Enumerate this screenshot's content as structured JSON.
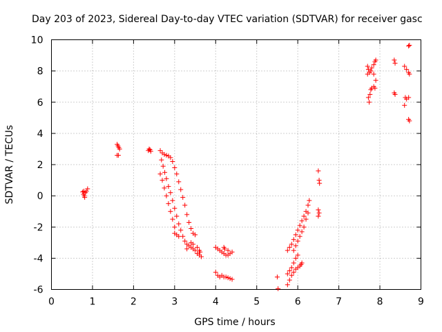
{
  "chart_data": {
    "type": "scatter",
    "title": "Day 203 of 2023, Sidereal Day-to-day VTEC variation (SDTVAR) for receiver gasc",
    "xlabel": "GPS time / hours",
    "ylabel": "SDTVAR / TECUs",
    "xlim": [
      0,
      9
    ],
    "ylim": [
      -6,
      10
    ],
    "xticks": [
      "0",
      "1",
      "2",
      "3",
      "4",
      "5",
      "6",
      "7",
      "8",
      "9"
    ],
    "yticks": [
      "-6",
      "-4",
      "-2",
      "0",
      "2",
      "4",
      "6",
      "8",
      "10"
    ],
    "grid": true,
    "marker": "+",
    "series_color": "#ff0000",
    "series": [
      {
        "name": "SDTVAR",
        "points": [
          [
            0.76,
            0.25
          ],
          [
            0.78,
            0.1
          ],
          [
            0.79,
            0.3
          ],
          [
            0.8,
            0.0
          ],
          [
            0.81,
            -0.1
          ],
          [
            0.83,
            0.2
          ],
          [
            0.85,
            0.3
          ],
          [
            0.88,
            0.45
          ],
          [
            1.6,
            3.3
          ],
          [
            1.62,
            3.2
          ],
          [
            1.64,
            3.1
          ],
          [
            1.66,
            3.0
          ],
          [
            1.6,
            2.6
          ],
          [
            1.63,
            2.6
          ],
          [
            2.36,
            2.9
          ],
          [
            2.38,
            3.0
          ],
          [
            2.4,
            2.95
          ],
          [
            2.42,
            2.85
          ],
          [
            2.65,
            2.9
          ],
          [
            2.7,
            2.75
          ],
          [
            2.75,
            2.65
          ],
          [
            2.8,
            2.6
          ],
          [
            2.85,
            2.55
          ],
          [
            2.9,
            2.45
          ],
          [
            2.95,
            2.2
          ],
          [
            3.0,
            1.8
          ],
          [
            3.05,
            1.4
          ],
          [
            3.1,
            0.9
          ],
          [
            3.15,
            0.4
          ],
          [
            3.2,
            -0.1
          ],
          [
            3.25,
            -0.6
          ],
          [
            3.3,
            -1.2
          ],
          [
            3.35,
            -1.7
          ],
          [
            3.4,
            -2.1
          ],
          [
            3.45,
            -2.4
          ],
          [
            3.5,
            -2.5
          ],
          [
            2.68,
            2.3
          ],
          [
            2.72,
            1.9
          ],
          [
            2.76,
            1.5
          ],
          [
            2.8,
            1.1
          ],
          [
            2.85,
            0.6
          ],
          [
            2.9,
            0.2
          ],
          [
            2.95,
            -0.3
          ],
          [
            3.0,
            -0.8
          ],
          [
            3.05,
            -1.3
          ],
          [
            3.1,
            -1.8
          ],
          [
            3.15,
            -2.2
          ],
          [
            2.65,
            1.4
          ],
          [
            2.7,
            1.0
          ],
          [
            2.75,
            0.5
          ],
          [
            2.8,
            0.0
          ],
          [
            2.85,
            -0.5
          ],
          [
            2.9,
            -1.0
          ],
          [
            2.95,
            -1.5
          ],
          [
            3.0,
            -2.0
          ],
          [
            3.05,
            -2.5
          ],
          [
            3.1,
            -2.6
          ],
          [
            3.0,
            -2.4
          ],
          [
            3.2,
            -2.6
          ],
          [
            3.25,
            -2.9
          ],
          [
            3.3,
            -3.1
          ],
          [
            3.35,
            -3.2
          ],
          [
            3.4,
            -3.3
          ],
          [
            3.45,
            -3.4
          ],
          [
            3.5,
            -3.5
          ],
          [
            3.55,
            -3.7
          ],
          [
            3.6,
            -3.8
          ],
          [
            3.65,
            -3.9
          ],
          [
            3.3,
            -3.4
          ],
          [
            3.4,
            -3.0
          ],
          [
            3.45,
            -3.1
          ],
          [
            3.55,
            -3.3
          ],
          [
            3.6,
            -3.5
          ],
          [
            3.62,
            -3.6
          ],
          [
            4.0,
            -3.3
          ],
          [
            4.05,
            -3.4
          ],
          [
            4.1,
            -3.5
          ],
          [
            4.15,
            -3.6
          ],
          [
            4.2,
            -3.7
          ],
          [
            4.25,
            -3.8
          ],
          [
            4.3,
            -3.8
          ],
          [
            4.35,
            -3.7
          ],
          [
            4.4,
            -3.6
          ],
          [
            4.2,
            -3.3
          ],
          [
            4.22,
            -3.4
          ],
          [
            4.3,
            -3.5
          ],
          [
            4.0,
            -4.9
          ],
          [
            4.05,
            -5.1
          ],
          [
            4.1,
            -5.2
          ],
          [
            4.15,
            -5.1
          ],
          [
            4.2,
            -5.2
          ],
          [
            4.25,
            -5.2
          ],
          [
            4.3,
            -5.25
          ],
          [
            4.35,
            -5.3
          ],
          [
            4.4,
            -5.35
          ],
          [
            5.5,
            -5.2
          ],
          [
            5.52,
            -5.95
          ],
          [
            5.75,
            -5.7
          ],
          [
            5.8,
            -5.4
          ],
          [
            5.85,
            -5.1
          ],
          [
            5.9,
            -4.9
          ],
          [
            5.95,
            -4.7
          ],
          [
            6.0,
            -4.6
          ],
          [
            6.05,
            -4.5
          ],
          [
            6.08,
            -4.4
          ],
          [
            6.1,
            -4.3
          ],
          [
            5.75,
            -5.0
          ],
          [
            5.8,
            -4.8
          ],
          [
            5.85,
            -4.6
          ],
          [
            5.9,
            -4.3
          ],
          [
            5.95,
            -4.0
          ],
          [
            6.0,
            -3.8
          ],
          [
            5.75,
            -3.5
          ],
          [
            5.8,
            -3.3
          ],
          [
            5.85,
            -3.1
          ],
          [
            5.9,
            -2.8
          ],
          [
            5.95,
            -2.5
          ],
          [
            6.0,
            -2.2
          ],
          [
            6.05,
            -1.9
          ],
          [
            6.1,
            -1.6
          ],
          [
            6.15,
            -1.3
          ],
          [
            6.2,
            -1.0
          ],
          [
            6.25,
            -0.6
          ],
          [
            6.28,
            -0.3
          ],
          [
            5.9,
            -3.5
          ],
          [
            5.95,
            -3.2
          ],
          [
            6.0,
            -2.9
          ],
          [
            6.05,
            -2.6
          ],
          [
            6.1,
            -2.3
          ],
          [
            6.15,
            -2.0
          ],
          [
            6.2,
            -1.5
          ],
          [
            6.25,
            -1.1
          ],
          [
            6.5,
            1.6
          ],
          [
            6.52,
            1.0
          ],
          [
            6.53,
            0.8
          ],
          [
            6.5,
            -0.9
          ],
          [
            6.52,
            -1.1
          ],
          [
            6.5,
            -1.3
          ],
          [
            7.7,
            8.3
          ],
          [
            7.72,
            8.1
          ],
          [
            7.75,
            7.9
          ],
          [
            7.78,
            8.0
          ],
          [
            7.8,
            8.2
          ],
          [
            7.85,
            8.4
          ],
          [
            7.88,
            8.6
          ],
          [
            7.9,
            8.7
          ],
          [
            7.7,
            7.8
          ],
          [
            7.72,
            6.3
          ],
          [
            7.74,
            6.0
          ],
          [
            7.76,
            6.5
          ],
          [
            7.78,
            6.8
          ],
          [
            7.8,
            6.9
          ],
          [
            7.85,
            7.0
          ],
          [
            7.88,
            6.9
          ],
          [
            7.9,
            7.4
          ],
          [
            7.85,
            7.8
          ],
          [
            8.35,
            8.7
          ],
          [
            8.37,
            8.5
          ],
          [
            8.35,
            6.6
          ],
          [
            8.37,
            6.5
          ],
          [
            8.6,
            8.3
          ],
          [
            8.65,
            8.1
          ],
          [
            8.7,
            7.9
          ],
          [
            8.72,
            7.8
          ],
          [
            8.62,
            6.3
          ],
          [
            8.65,
            6.2
          ],
          [
            8.7,
            6.3
          ],
          [
            8.6,
            5.8
          ],
          [
            8.7,
            9.6
          ],
          [
            8.72,
            9.65
          ],
          [
            8.7,
            4.9
          ],
          [
            8.72,
            4.8
          ]
        ]
      }
    ]
  }
}
